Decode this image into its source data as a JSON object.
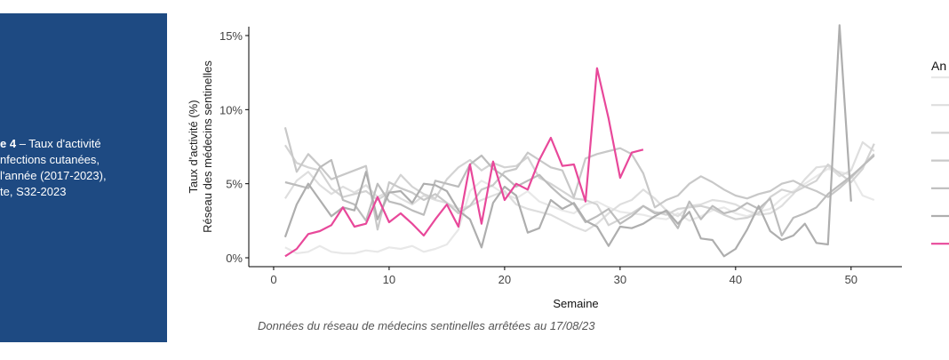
{
  "panel": {
    "label_bold": "e 4",
    "lines": [
      "– Taux d'activité",
      "nfections cutanées,",
      "l'année (2017-2023),",
      "te, S32-2023"
    ]
  },
  "chart_data": {
    "type": "line",
    "y_label": [
      "Taux d'activité (%)",
      "Réseau des médecins sentinelles"
    ],
    "x_label": "Semaine",
    "caption": "Données du réseau de médecins sentinelles arrêtées au  17/08/23",
    "legend_title": "An",
    "xlim": [
      -2.15,
      54.4
    ],
    "xticks": [
      0,
      10,
      20,
      30,
      40,
      50
    ],
    "ylim": [
      -0.6,
      15.6
    ],
    "yticks": [
      {
        "value": 0,
        "label": "0%"
      },
      {
        "value": 5,
        "label": "5%"
      },
      {
        "value": 10,
        "label": "10%"
      },
      {
        "value": 15,
        "label": "15%"
      }
    ],
    "x": [
      1,
      2,
      3,
      4,
      5,
      6,
      7,
      8,
      9,
      10,
      11,
      12,
      13,
      14,
      15,
      16,
      17,
      18,
      19,
      20,
      21,
      22,
      23,
      24,
      25,
      26,
      27,
      28,
      29,
      30,
      31,
      32,
      33,
      34,
      35,
      36,
      37,
      38,
      39,
      40,
      41,
      42,
      43,
      44,
      45,
      46,
      47,
      48,
      49,
      50,
      51,
      52
    ],
    "series": [
      {
        "color": "#e8e8e8",
        "values": [
          0.7,
          0.3,
          0.4,
          0.8,
          0.4,
          0.3,
          0.3,
          0.5,
          0.4,
          0.7,
          0.6,
          0.8,
          0.4,
          0.6,
          0.9,
          1.9,
          4.5,
          5.2,
          4.8,
          4.3,
          4.0,
          4.5,
          3.8,
          3.5,
          3.2,
          3.0,
          3.6,
          3.8,
          3.4,
          3.1,
          3.0,
          2.9,
          2.7,
          2.6,
          3.0,
          2.5,
          2.8,
          3.2,
          3.4,
          3.0,
          2.8,
          3.1,
          3.3,
          4.0,
          4.5,
          5.0,
          5.5,
          6.0,
          5.8,
          5.6,
          4.2,
          3.9
        ]
      },
      {
        "color": "#dedede",
        "values": [
          4.0,
          5.2,
          5.8,
          4.9,
          4.3,
          4.8,
          4.4,
          4.9,
          4.1,
          4.5,
          4.0,
          3.6,
          4.2,
          3.9,
          3.7,
          3.3,
          3.5,
          3.9,
          4.2,
          4.5,
          3.6,
          3.3,
          3.1,
          2.9,
          2.5,
          2.1,
          1.8,
          2.3,
          3.0,
          3.6,
          3.9,
          4.6,
          4.0,
          3.2,
          2.8,
          3.5,
          3.6,
          3.9,
          3.8,
          3.6,
          3.2,
          2.9,
          3.0,
          3.5,
          4.3,
          5.3,
          6.1,
          6.2,
          5.5,
          5.9,
          7.8,
          7.2
        ]
      },
      {
        "color": "#d3d3d3",
        "values": [
          7.6,
          6.4,
          6.1,
          5.9,
          4.7,
          4.1,
          4.3,
          4.5,
          3.9,
          4.4,
          5.6,
          4.8,
          4.3,
          4.0,
          5.3,
          6.1,
          6.6,
          5.9,
          6.4,
          6.1,
          6.2,
          6.8,
          5.4,
          5.0,
          4.5,
          4.0,
          3.9,
          3.6,
          2.2,
          2.6,
          3.0,
          3.5,
          3.1,
          2.9,
          3.3,
          3.4,
          3.5,
          3.3,
          2.9,
          2.6,
          2.7,
          3.0,
          4.1,
          4.6,
          4.4,
          4.8,
          5.2,
          6.3,
          5.7,
          5.1,
          6.0,
          7.7
        ]
      },
      {
        "color": "#c8c8c8",
        "values": [
          8.8,
          5.8,
          7.0,
          6.2,
          5.3,
          5.6,
          5.9,
          6.2,
          1.9,
          5.1,
          4.7,
          4.4,
          3.9,
          4.3,
          3.7,
          3.0,
          3.5,
          4.6,
          4.9,
          5.8,
          6.0,
          7.1,
          6.6,
          6.1,
          5.9,
          4.1,
          6.7,
          7.0,
          7.2,
          7.4,
          7.0,
          5.7,
          3.4,
          3.9,
          4.2,
          5.0,
          5.5,
          5.1,
          4.6,
          4.2,
          4.0,
          4.3,
          4.5,
          5.0,
          5.2,
          4.8,
          4.5,
          4.1,
          4.7,
          5.4,
          6.2,
          7.0
        ]
      },
      {
        "color": "#bcbcbc",
        "values": [
          5.1,
          4.9,
          4.7,
          6.1,
          6.6,
          3.9,
          3.6,
          2.5,
          5.0,
          3.8,
          3.6,
          3.2,
          2.9,
          5.2,
          5.0,
          4.8,
          6.3,
          6.9,
          6.0,
          5.5,
          4.8,
          5.2,
          5.6,
          4.8,
          4.1,
          3.6,
          2.4,
          2.8,
          3.3,
          2.3,
          2.8,
          3.5,
          3.0,
          3.1,
          2.0,
          3.8,
          2.6,
          3.5,
          3.0,
          3.2,
          3.7,
          3.3,
          4.0,
          1.5,
          2.7,
          3.0,
          3.4,
          4.3,
          4.9,
          5.5,
          6.2,
          6.9
        ]
      },
      {
        "color": "#aeaeae",
        "values": [
          1.4,
          3.6,
          5.0,
          3.9,
          2.8,
          3.4,
          3.2,
          5.8,
          2.6,
          4.4,
          4.5,
          3.7,
          5.0,
          4.9,
          4.5,
          3.2,
          2.6,
          0.7,
          3.7,
          4.8,
          4.2,
          1.7,
          2.0,
          3.9,
          3.3,
          3.7,
          2.5,
          2.1,
          0.8,
          2.1,
          2.0,
          2.3,
          2.8,
          3.2,
          2.3,
          3.1,
          1.3,
          1.2,
          0.1,
          0.6,
          1.9,
          3.5,
          1.8,
          1.2,
          1.5,
          2.3,
          1.0,
          0.9,
          15.7,
          3.8,
          null,
          null
        ]
      },
      {
        "color": "#e8489a",
        "values": [
          0.1,
          0.6,
          1.6,
          1.8,
          2.2,
          3.4,
          2.1,
          2.3,
          4.1,
          2.4,
          3.0,
          2.3,
          1.5,
          2.6,
          3.6,
          2.1,
          6.3,
          2.3,
          6.5,
          3.9,
          5.0,
          4.6,
          6.6,
          8.1,
          6.2,
          6.3,
          3.8,
          12.8,
          9.4,
          5.4,
          7.1,
          7.3,
          null,
          null,
          null,
          null,
          null,
          null,
          null,
          null,
          null,
          null,
          null,
          null,
          null,
          null,
          null,
          null,
          null,
          null,
          null,
          null
        ]
      }
    ]
  }
}
